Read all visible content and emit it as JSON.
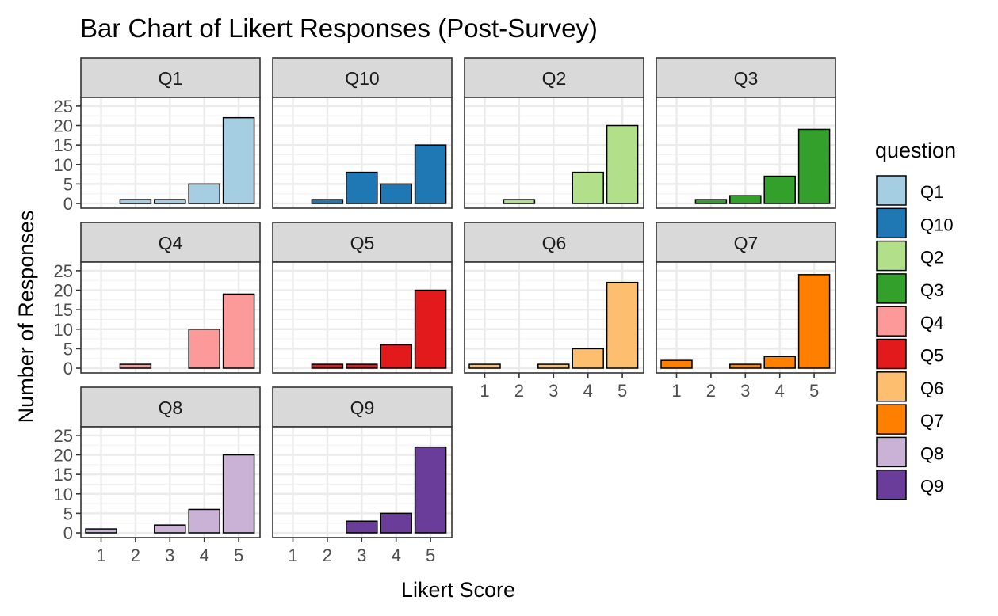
{
  "chart_data": {
    "type": "bar",
    "title": "Bar Chart of Likert Responses (Post-Survey)",
    "xlabel": "Likert Score",
    "ylabel": "Number of Responses",
    "categories": [
      "1",
      "2",
      "3",
      "4",
      "5"
    ],
    "yticks": [
      "0",
      "5",
      "10",
      "15",
      "20",
      "25"
    ],
    "ylim": [
      0,
      26.3
    ],
    "grid": true,
    "legend": {
      "title": "question",
      "position": "right"
    },
    "series": [
      {
        "name": "Q1",
        "color": "#A6CEE3",
        "values": [
          0,
          1,
          1,
          5,
          22
        ]
      },
      {
        "name": "Q10",
        "color": "#1F78B4",
        "values": [
          0,
          1,
          8,
          5,
          15
        ]
      },
      {
        "name": "Q2",
        "color": "#B2DF8A",
        "values": [
          0,
          1,
          0,
          8,
          20
        ]
      },
      {
        "name": "Q3",
        "color": "#33A02C",
        "values": [
          0,
          1,
          2,
          7,
          19
        ]
      },
      {
        "name": "Q4",
        "color": "#FB9A99",
        "values": [
          0,
          1,
          0,
          10,
          19
        ]
      },
      {
        "name": "Q5",
        "color": "#E31A1C",
        "values": [
          0,
          1,
          1,
          6,
          20
        ]
      },
      {
        "name": "Q6",
        "color": "#FDBF6F",
        "values": [
          1,
          0,
          1,
          5,
          22
        ]
      },
      {
        "name": "Q7",
        "color": "#FF7F00",
        "values": [
          2,
          0,
          1,
          3,
          24
        ]
      },
      {
        "name": "Q8",
        "color": "#CAB2D6",
        "values": [
          1,
          0,
          2,
          6,
          20
        ]
      },
      {
        "name": "Q9",
        "color": "#6A3D9A",
        "values": [
          0,
          0,
          3,
          5,
          22
        ]
      }
    ]
  }
}
